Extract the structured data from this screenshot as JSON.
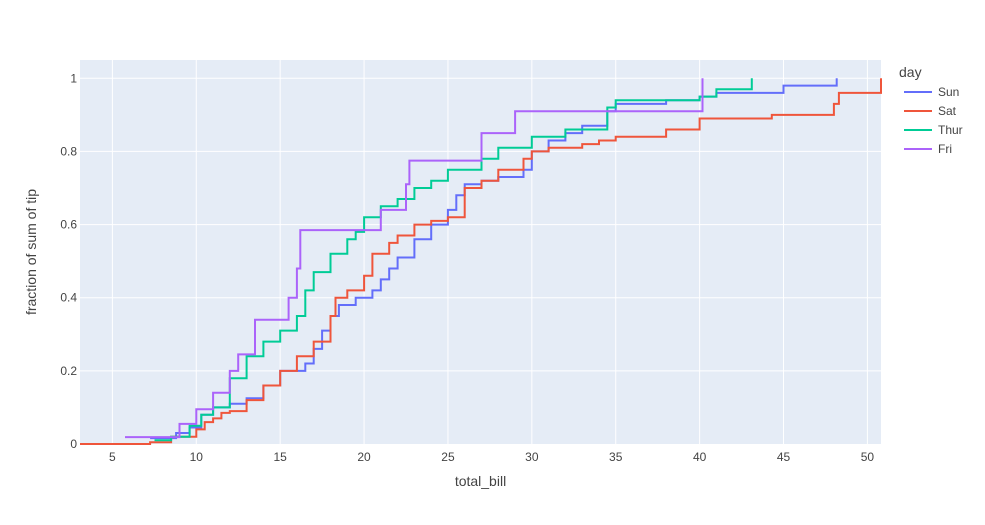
{
  "chart_data": {
    "type": "line",
    "line_shape": "step",
    "xlabel": "total_bill",
    "ylabel": "fraction of sum of tip",
    "xlim": [
      3.07,
      50.81
    ],
    "ylim": [
      0,
      1.05
    ],
    "x_ticks": [
      5,
      10,
      15,
      20,
      25,
      30,
      35,
      40,
      45,
      50
    ],
    "y_ticks": [
      0,
      0.2,
      0.4,
      0.6,
      0.8,
      1
    ],
    "y_tick_labels": [
      "0",
      "0.2",
      "0.4",
      "0.6",
      "0.8",
      "1"
    ],
    "grid": true,
    "background": "#e5ecf6",
    "legend": {
      "title": "day",
      "position": "right"
    },
    "series": [
      {
        "name": "Sun",
        "color": "#636efa",
        "x": [
          7.25,
          8.8,
          9.6,
          10.3,
          11.0,
          12.0,
          13.0,
          14.0,
          15.0,
          16.5,
          17.0,
          17.5,
          18.0,
          18.5,
          19.5,
          20.5,
          21.0,
          21.5,
          22.0,
          23.0,
          24.0,
          25.0,
          25.5,
          26.0,
          27.0,
          28.0,
          29.5,
          30.0,
          31.0,
          32.0,
          33.0,
          34.5,
          35.0,
          38.0,
          40.0,
          41.0,
          45.0,
          48.17
        ],
        "y": [
          0.016,
          0.03,
          0.045,
          0.08,
          0.1,
          0.11,
          0.125,
          0.16,
          0.2,
          0.22,
          0.26,
          0.31,
          0.35,
          0.38,
          0.4,
          0.42,
          0.45,
          0.48,
          0.51,
          0.56,
          0.6,
          0.64,
          0.68,
          0.71,
          0.72,
          0.73,
          0.75,
          0.8,
          0.83,
          0.85,
          0.87,
          0.91,
          0.93,
          0.94,
          0.95,
          0.96,
          0.98,
          1.0
        ]
      },
      {
        "name": "Sat",
        "color": "#ef553b",
        "x": [
          3.07,
          7.25,
          8.5,
          10.0,
          10.5,
          11.0,
          11.5,
          12.0,
          13.0,
          14.0,
          15.0,
          16.0,
          17.0,
          18.0,
          18.3,
          19.0,
          20.0,
          20.5,
          21.5,
          22.0,
          23.0,
          24.0,
          25.0,
          26.0,
          27.0,
          28.0,
          29.5,
          30.0,
          31.0,
          32.0,
          33.0,
          34.0,
          35.0,
          38.0,
          40.0,
          44.3,
          48.0,
          48.3,
          50.81
        ],
        "y": [
          0,
          0.005,
          0.02,
          0.04,
          0.06,
          0.07,
          0.085,
          0.09,
          0.12,
          0.16,
          0.2,
          0.24,
          0.28,
          0.35,
          0.4,
          0.42,
          0.46,
          0.52,
          0.55,
          0.57,
          0.6,
          0.61,
          0.62,
          0.7,
          0.72,
          0.75,
          0.78,
          0.8,
          0.81,
          0.81,
          0.82,
          0.83,
          0.84,
          0.86,
          0.89,
          0.9,
          0.93,
          0.96,
          1.0
        ]
      },
      {
        "name": "Thur",
        "color": "#00cc96",
        "x": [
          7.51,
          8.5,
          9.6,
          10.3,
          11.0,
          12.0,
          13.0,
          14.0,
          15.0,
          16.0,
          16.5,
          17.0,
          18.0,
          19.0,
          19.5,
          20.0,
          21.0,
          22.0,
          23.0,
          24.0,
          25.0,
          27.0,
          28.0,
          30.0,
          32.0,
          34.5,
          35.0,
          40.0,
          41.0,
          43.11
        ],
        "y": [
          0.01,
          0.02,
          0.05,
          0.08,
          0.1,
          0.18,
          0.24,
          0.28,
          0.31,
          0.35,
          0.42,
          0.47,
          0.52,
          0.56,
          0.58,
          0.62,
          0.65,
          0.67,
          0.7,
          0.72,
          0.75,
          0.78,
          0.81,
          0.84,
          0.86,
          0.92,
          0.94,
          0.95,
          0.97,
          1.0
        ]
      },
      {
        "name": "Fri",
        "color": "#ab63fa",
        "x": [
          5.75,
          9.0,
          10.0,
          11.0,
          12.0,
          12.5,
          13.5,
          15.5,
          16.0,
          16.2,
          20.5,
          21.0,
          22.5,
          22.7,
          26.5,
          27.0,
          29.0,
          40.17
        ],
        "y": [
          0.019,
          0.055,
          0.095,
          0.14,
          0.2,
          0.245,
          0.34,
          0.4,
          0.48,
          0.585,
          0.585,
          0.64,
          0.71,
          0.775,
          0.775,
          0.85,
          0.91,
          1.0
        ]
      }
    ]
  }
}
